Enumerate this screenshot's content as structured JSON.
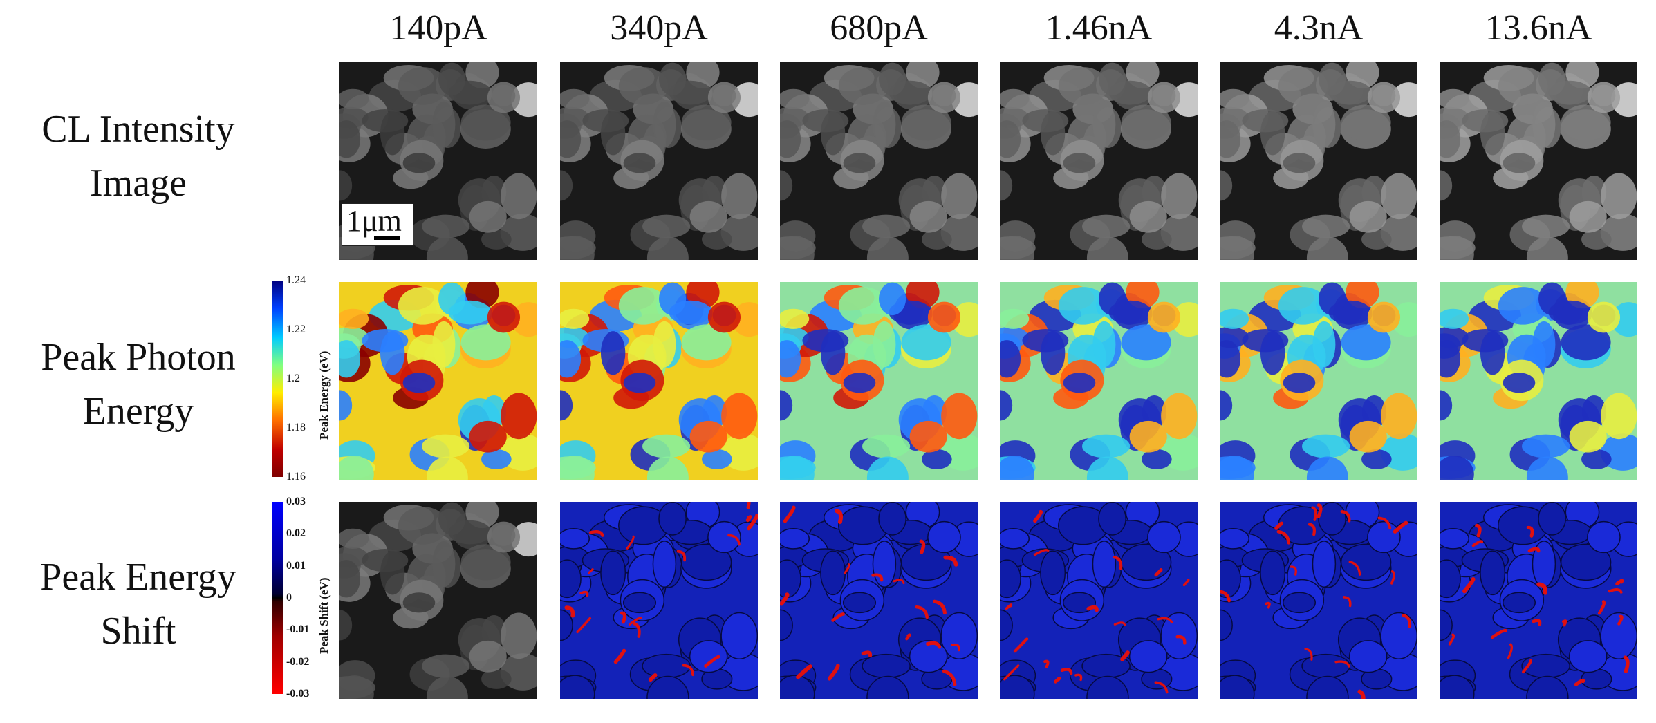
{
  "columns": [
    "140pA",
    "340pA",
    "680pA",
    "1.46nA",
    "4.3nA",
    "13.6nA"
  ],
  "rows": [
    {
      "line1": "CL Intensity",
      "line2": "Image"
    },
    {
      "line1": "Peak Photon",
      "line2": "Energy"
    },
    {
      "line1": "Peak Energy",
      "line2": "Shift"
    }
  ],
  "scale_bar": {
    "label": "1μm"
  },
  "energy_colorbar": {
    "label": "Peak Energy (eV)",
    "ticks": [
      "1.24",
      "1.22",
      "1.2",
      "1.18",
      "1.16"
    ],
    "colors": [
      "#00007f",
      "#0040ff",
      "#00ccff",
      "#80ff80",
      "#ffee00",
      "#ff7000",
      "#c00000",
      "#7f0000"
    ]
  },
  "shift_colorbar": {
    "label": "Peak Shift (eV)",
    "ticks": [
      "0.03",
      "0.02",
      "0.01",
      "0",
      "-0.01",
      "-0.02",
      "-0.03"
    ],
    "colors": [
      "#0000ff",
      "#000040",
      "#000000",
      "#400000",
      "#ff0000"
    ]
  }
}
